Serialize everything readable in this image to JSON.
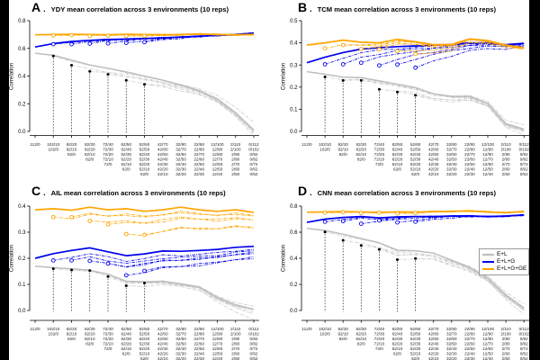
{
  "figure": {
    "background": "#000000",
    "canvas_color": "#ffffff",
    "letter_period": "."
  },
  "legend": {
    "position": "inset panel D",
    "items": [
      {
        "label": "E+L",
        "color": "#bdbdbd"
      },
      {
        "label": "E+L+G",
        "color": "#0000ee"
      },
      {
        "label": "E+L+G+GE",
        "color": "#ffa500"
      }
    ]
  },
  "colors": {
    "gray": "#bdbdbd",
    "blue": "#0000ee",
    "orange": "#ffa500",
    "black": "#000000"
  },
  "x_categories": [
    [
      "112/0"
    ],
    [
      "102/10",
      "102/0"
    ],
    [
      "92/20",
      "92/10",
      "92/0"
    ],
    [
      "82/30",
      "82/20",
      "82/10",
      "82/0"
    ],
    [
      "72/40",
      "72/30",
      "72/20",
      "72/10",
      "72/0"
    ],
    [
      "62/50",
      "62/40",
      "62/30",
      "62/20",
      "62/10",
      "62/0"
    ],
    [
      "52/60",
      "52/50",
      "52/40",
      "52/30",
      "52/20",
      "52/10",
      "52/0"
    ],
    [
      "42/70",
      "42/60",
      "42/50",
      "42/40",
      "42/30",
      "42/20",
      "42/10"
    ],
    [
      "32/80",
      "32/70",
      "32/60",
      "32/50",
      "32/40",
      "32/30",
      "32/20"
    ],
    [
      "22/90",
      "22/80",
      "22/70",
      "22/60",
      "22/50",
      "22/40",
      "22/30"
    ],
    [
      "12/100",
      "12/90",
      "12/80",
      "12/70",
      "12/60",
      "12/50",
      "12/40"
    ],
    [
      "2/110",
      "2/100",
      "2/90",
      "2/80",
      "2/70",
      "2/60",
      "2/50"
    ],
    [
      "0/112",
      "0/102",
      "0/92",
      "0/82",
      "0/72",
      "0/62",
      "0/52"
    ]
  ],
  "chart_data": [
    {
      "type": "line",
      "panel_letter": "A",
      "title": "YDY mean correlation across 3 environments (10 reps)",
      "xlabel": "",
      "ylabel": "Correlation",
      "ylim": [
        0,
        0.8
      ],
      "yticks": [
        0.0,
        0.2,
        0.4,
        0.6,
        0.8
      ],
      "series": [
        {
          "name": "E+L",
          "color": "#bdbdbd",
          "style": "solid",
          "values": [
            0.565,
            0.55,
            0.515,
            0.48,
            0.455,
            0.43,
            0.4,
            0.37,
            0.335,
            0.295,
            0.235,
            0.135,
            0.01
          ]
        },
        {
          "name": "E+L+G",
          "color": "#0000ee",
          "style": "solid",
          "values": [
            0.61,
            0.635,
            0.65,
            0.658,
            0.664,
            0.668,
            0.672,
            0.676,
            0.682,
            0.688,
            0.694,
            0.7,
            0.71
          ]
        },
        {
          "name": "E+L+G+GE",
          "color": "#ffa500",
          "style": "solid",
          "values": [
            0.698,
            0.7,
            0.702,
            0.7,
            0.698,
            0.702,
            0.7,
            0.698,
            0.7,
            0.704,
            0.7,
            0.698,
            0.7
          ]
        }
      ],
      "scenarios": {
        "x": [
          1,
          2,
          3,
          4,
          5,
          6
        ],
        "series": [
          {
            "name": "E+L",
            "marker": "dot",
            "color": "#bdbdbd",
            "decay": 0.8,
            "start_values": [
              0.545,
              0.478,
              0.434,
              0.412,
              0.369,
              0.34
            ]
          },
          {
            "name": "E+L+G",
            "marker": "circle",
            "color": "#0000ee",
            "decay": 0.5,
            "start_values": [
              0.63,
              0.63,
              0.634,
              0.636,
              0.64,
              0.645
            ]
          },
          {
            "name": "E+L+G+GE",
            "marker": "circle",
            "color": "#ffa500",
            "decay": 0.5,
            "start_values": [
              0.694,
              0.696,
              0.69,
              0.692,
              0.69,
              0.69
            ]
          }
        ]
      },
      "gray_tail_offsets": [
        0.055,
        -0.02,
        -0.04
      ]
    },
    {
      "type": "line",
      "panel_letter": "B",
      "title": "TCM mean correlation across 3 environments (10 reps)",
      "xlabel": "",
      "ylabel": "Correlation",
      "ylim": [
        0,
        0.5
      ],
      "yticks": [
        0.0,
        0.1,
        0.2,
        0.3,
        0.4,
        0.5
      ],
      "series": [
        {
          "name": "E+L",
          "color": "#bdbdbd",
          "style": "solid",
          "values": [
            0.27,
            0.258,
            0.245,
            0.243,
            0.228,
            0.213,
            0.198,
            0.17,
            0.158,
            0.158,
            0.127,
            0.035,
            0.01
          ]
        },
        {
          "name": "E+L+G",
          "color": "#0000ee",
          "style": "solid",
          "values": [
            0.31,
            0.335,
            0.356,
            0.372,
            0.378,
            0.383,
            0.386,
            0.389,
            0.393,
            0.4,
            0.4,
            0.392,
            0.398
          ]
        },
        {
          "name": "E+L+G+GE",
          "color": "#ffa500",
          "style": "solid",
          "values": [
            0.39,
            0.4,
            0.412,
            0.403,
            0.4,
            0.416,
            0.405,
            0.392,
            0.393,
            0.418,
            0.41,
            0.39,
            0.378
          ]
        }
      ],
      "scenarios": {
        "x": [
          1,
          2,
          3,
          4,
          5,
          6
        ],
        "series": [
          {
            "name": "E+L",
            "marker": "dot",
            "color": "#bdbdbd",
            "decay": 0.8,
            "start_values": [
              0.246,
              0.23,
              0.23,
              0.19,
              0.178,
              0.163
            ]
          },
          {
            "name": "E+L+G",
            "marker": "circle",
            "color": "#0000ee",
            "decay": 0.72,
            "start_values": [
              0.303,
              0.303,
              0.31,
              0.298,
              0.302,
              0.288
            ]
          },
          {
            "name": "E+L+G+GE",
            "marker": "circle",
            "color": "#ffa500",
            "decay": 0.7,
            "start_values": [
              0.375,
              0.39,
              0.372,
              0.37,
              0.362,
              0.35
            ]
          }
        ]
      },
      "gray_tail_offsets": [
        0.02,
        -0.01,
        -0.025
      ]
    },
    {
      "type": "line",
      "panel_letter": "C",
      "title": "AIL mean correlation across 3 environments (10 reps)",
      "xlabel": "",
      "ylabel": "Correlation",
      "ylim": [
        0,
        0.4
      ],
      "yticks": [
        0.0,
        0.1,
        0.2,
        0.3,
        0.4
      ],
      "series": [
        {
          "name": "E+L",
          "color": "#bdbdbd",
          "style": "solid",
          "values": [
            0.17,
            0.164,
            0.16,
            0.154,
            0.139,
            0.112,
            0.11,
            0.112,
            0.102,
            0.09,
            0.05,
            0.022,
            0.005
          ]
        },
        {
          "name": "E+L+G",
          "color": "#0000ee",
          "style": "solid",
          "values": [
            0.2,
            0.218,
            0.23,
            0.24,
            0.225,
            0.21,
            0.217,
            0.228,
            0.227,
            0.23,
            0.234,
            0.242,
            0.246
          ]
        },
        {
          "name": "E+L+G+GE",
          "color": "#ffa500",
          "style": "solid",
          "values": [
            0.386,
            0.39,
            0.384,
            0.396,
            0.386,
            0.39,
            0.38,
            0.386,
            0.396,
            0.386,
            0.38,
            0.386,
            0.376
          ]
        }
      ],
      "scenarios": {
        "x": [
          1,
          2,
          3,
          4,
          5,
          6
        ],
        "series": [
          {
            "name": "E+L",
            "marker": "dot",
            "color": "#bdbdbd",
            "decay": 0.9,
            "start_values": [
              0.16,
              0.155,
              0.153,
              0.13,
              0.095,
              0.105
            ]
          },
          {
            "name": "E+L+G",
            "marker": "circle",
            "color": "#0000ee",
            "decay": 0.93,
            "start_values": [
              0.192,
              0.192,
              0.19,
              0.18,
              0.135,
              0.152
            ]
          },
          {
            "name": "E+L+G+GE",
            "marker": "circle",
            "color": "#ffa500",
            "decay": 0.93,
            "start_values": [
              0.358,
              0.358,
              0.343,
              0.33,
              0.293,
              0.29
            ]
          }
        ]
      },
      "gray_tail_offsets": [
        0.012,
        -0.018,
        -0.04
      ]
    },
    {
      "type": "line",
      "panel_letter": "D",
      "title": "CNN mean correlation across 3 environments (10 reps)",
      "xlabel": "",
      "ylabel": "Correlation",
      "ylim": [
        0,
        0.8
      ],
      "yticks": [
        0.0,
        0.2,
        0.4,
        0.6,
        0.8
      ],
      "series": [
        {
          "name": "E+L",
          "color": "#bdbdbd",
          "style": "solid",
          "values": [
            0.63,
            0.613,
            0.585,
            0.552,
            0.518,
            0.462,
            0.458,
            0.44,
            0.385,
            0.33,
            0.25,
            0.12,
            0.02
          ]
        },
        {
          "name": "E+L+G",
          "color": "#0000ee",
          "style": "solid",
          "values": [
            0.675,
            0.7,
            0.713,
            0.72,
            0.71,
            0.717,
            0.72,
            0.72,
            0.724,
            0.725,
            0.72,
            0.724,
            0.732
          ]
        },
        {
          "name": "E+L+G+GE",
          "color": "#ffa500",
          "style": "solid",
          "values": [
            0.753,
            0.755,
            0.758,
            0.755,
            0.752,
            0.755,
            0.754,
            0.758,
            0.76,
            0.763,
            0.755,
            0.75,
            0.758
          ]
        }
      ],
      "scenarios": {
        "x": [
          1,
          2,
          3,
          4,
          5,
          6
        ],
        "series": [
          {
            "name": "E+L",
            "marker": "dot",
            "color": "#bdbdbd",
            "decay": 0.8,
            "start_values": [
              0.602,
              0.538,
              0.498,
              0.468,
              0.39,
              0.398
            ]
          },
          {
            "name": "E+L+G",
            "marker": "circle",
            "color": "#0000ee",
            "decay": 0.55,
            "start_values": [
              0.68,
              0.685,
              0.665,
              0.69,
              0.675,
              0.68
            ]
          },
          {
            "name": "E+L+G+GE",
            "marker": "circle",
            "color": "#ffa500",
            "decay": 0.5,
            "start_values": [
              0.75,
              0.754,
              0.748,
              0.75,
              0.744,
              0.748
            ]
          }
        ]
      },
      "gray_tail_offsets": [
        0.03,
        -0.02,
        -0.05
      ]
    }
  ]
}
